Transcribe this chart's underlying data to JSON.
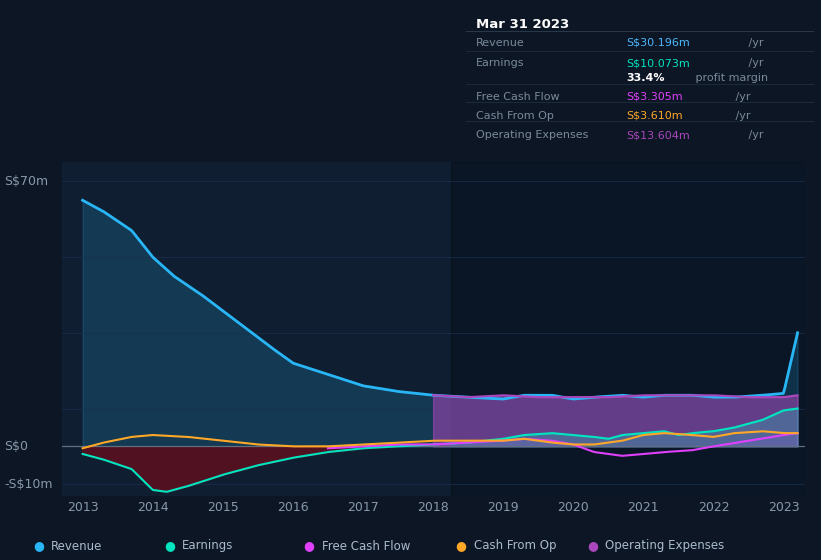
{
  "bg_color": "#0c1624",
  "plot_bg": "#0f1e30",
  "grid_color": "#1a3050",
  "ylabel_text": "S$70m",
  "y0_text": "S$0",
  "yn10_text": "-S$10m",
  "x_labels": [
    "2013",
    "2014",
    "2015",
    "2016",
    "2017",
    "2018",
    "2019",
    "2020",
    "2021",
    "2022",
    "2023"
  ],
  "ylim": [
    -13,
    75
  ],
  "xlim_start": 2012.7,
  "xlim_end": 2023.3,
  "info_box": {
    "date": "Mar 31 2023",
    "rows": [
      {
        "label": "Revenue",
        "value": "S$30.196m",
        "color": "#4db8ff",
        "suffix": " /yr",
        "bold_val": false
      },
      {
        "label": "Earnings",
        "value": "S$10.073m",
        "color": "#00e5c0",
        "suffix": " /yr",
        "bold_val": false
      },
      {
        "label": "",
        "value": "33.4%",
        "color": "#ffffff",
        "suffix": " profit margin",
        "bold_val": true
      },
      {
        "label": "Free Cash Flow",
        "value": "S$3.305m",
        "color": "#e040fb",
        "suffix": " /yr",
        "bold_val": false
      },
      {
        "label": "Cash From Op",
        "value": "S$3.610m",
        "color": "#ffa726",
        "suffix": " /yr",
        "bold_val": false
      },
      {
        "label": "Operating Expenses",
        "value": "S$13.604m",
        "color": "#ab47bc",
        "suffix": " /yr",
        "bold_val": false
      }
    ]
  },
  "revenue_color": "#29b6f6",
  "earnings_color": "#00e5c0",
  "fcf_color": "#e040fb",
  "cashop_color": "#ffa726",
  "opex_color": "#ab47bc",
  "highlight_x_start": 2018.25,
  "highlight_x_end": 2023.3,
  "legend_items": [
    {
      "label": "Revenue",
      "color": "#29b6f6"
    },
    {
      "label": "Earnings",
      "color": "#00e5c0"
    },
    {
      "label": "Free Cash Flow",
      "color": "#e040fb"
    },
    {
      "label": "Cash From Op",
      "color": "#ffa726"
    },
    {
      "label": "Operating Expenses",
      "color": "#ab47bc"
    }
  ]
}
